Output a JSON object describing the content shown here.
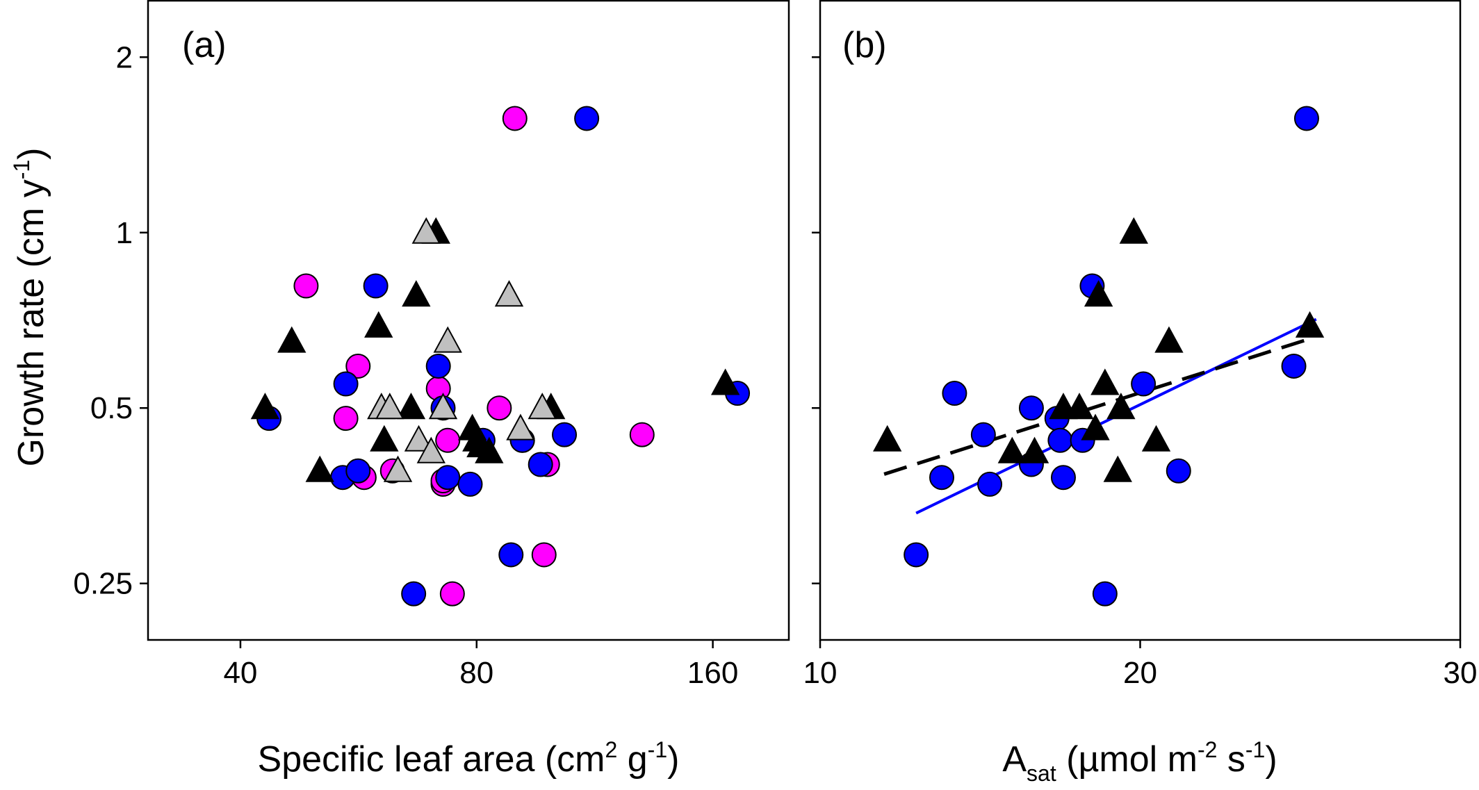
{
  "figure": {
    "ylabel": {
      "main": "Growth rate (cm y",
      "sup": "-1",
      "end": ")"
    }
  },
  "chart_data": [
    {
      "type": "scatter",
      "panel_label": "(a)",
      "xlabel": {
        "main": "Specific leaf area (cm",
        "sup1": "2",
        "mid": " g",
        "sup2": "-1",
        "end": ")"
      },
      "x_scale": "log",
      "y_scale": "log",
      "xlim": [
        30.5,
        200
      ],
      "ylim": [
        0.2,
        2.5
      ],
      "x_ticks": [
        40,
        80,
        160
      ],
      "y_ticks": [
        0.25,
        0.5,
        1,
        2
      ],
      "series": [
        {
          "marker": "circle",
          "color": "#ff00ff",
          "points": [
            [
              48.5,
              0.81
            ],
            [
              56.5,
              0.59
            ],
            [
              54.5,
              0.48
            ],
            [
              71.5,
              0.54
            ],
            [
              73.5,
              0.44
            ],
            [
              72.5,
              0.37
            ],
            [
              89.5,
              1.57
            ],
            [
              85.5,
              0.5
            ],
            [
              91.5,
              0.44
            ],
            [
              98.5,
              0.4
            ],
            [
              57.5,
              0.38
            ],
            [
              62.5,
              0.39
            ],
            [
              72.5,
              0.375
            ],
            [
              74.5,
              0.24
            ],
            [
              97.5,
              0.28
            ],
            [
              130,
              0.45
            ]
          ]
        },
        {
          "marker": "circle",
          "color": "#0000ff",
          "points": [
            [
              43.5,
              0.48
            ],
            [
              54.5,
              0.55
            ],
            [
              54,
              0.38
            ],
            [
              59.5,
              0.81
            ],
            [
              56.5,
              0.39
            ],
            [
              66.5,
              0.24
            ],
            [
              71.5,
              0.59
            ],
            [
              72.5,
              0.5
            ],
            [
              73.5,
              0.38
            ],
            [
              78.5,
              0.37
            ],
            [
              81.5,
              0.44
            ],
            [
              88.5,
              0.28
            ],
            [
              91.5,
              0.44
            ],
            [
              96.5,
              0.4
            ],
            [
              103.5,
              0.45
            ],
            [
              110.5,
              1.57
            ],
            [
              172,
              0.53
            ]
          ]
        },
        {
          "marker": "triangle",
          "color": "#000000",
          "points": [
            [
              43,
              0.5
            ],
            [
              46.5,
              0.65
            ],
            [
              50.5,
              0.39
            ],
            [
              60,
              0.69
            ],
            [
              61,
              0.44
            ],
            [
              66,
              0.5
            ],
            [
              67,
              0.78
            ],
            [
              71,
              1.0
            ],
            [
              79,
              0.46
            ],
            [
              80,
              0.44
            ],
            [
              81,
              0.43
            ],
            [
              83,
              0.42
            ],
            [
              99.5,
              0.5
            ],
            [
              166,
              0.55
            ]
          ]
        },
        {
          "marker": "triangle",
          "color": "#c0c0c0",
          "points": [
            [
              60.5,
              0.5
            ],
            [
              62,
              0.5
            ],
            [
              63.5,
              0.39
            ],
            [
              67.5,
              0.44
            ],
            [
              69,
              1.0
            ],
            [
              70,
              0.42
            ],
            [
              72.5,
              0.5
            ],
            [
              73.5,
              0.65
            ],
            [
              88,
              0.78
            ],
            [
              91,
              0.46
            ],
            [
              97,
              0.5
            ]
          ]
        }
      ]
    },
    {
      "type": "scatter",
      "panel_label": "(b)",
      "xlabel": {
        "main": "A",
        "sub": "sat",
        "mid": " (µmol m",
        "sup1": "-2",
        "mid2": " s",
        "sup2": "-1",
        "end": ")"
      },
      "x_scale": "linear",
      "y_scale": "log",
      "xlim": [
        10,
        30
      ],
      "ylim": [
        0.2,
        2.5
      ],
      "x_ticks": [
        10,
        20,
        30
      ],
      "y_ticks": [
        0.25,
        0.5,
        1,
        2
      ],
      "series": [
        {
          "marker": "circle",
          "color": "#0000ff",
          "points": [
            [
              13.0,
              0.28
            ],
            [
              13.8,
              0.38
            ],
            [
              14.2,
              0.53
            ],
            [
              15.1,
              0.45
            ],
            [
              15.3,
              0.37
            ],
            [
              16.6,
              0.5
            ],
            [
              16.6,
              0.4
            ],
            [
              17.4,
              0.48
            ],
            [
              17.5,
              0.44
            ],
            [
              17.6,
              0.38
            ],
            [
              18.2,
              0.44
            ],
            [
              18.5,
              0.81
            ],
            [
              18.9,
              0.24
            ],
            [
              20.1,
              0.55
            ],
            [
              21.2,
              0.39
            ],
            [
              24.8,
              0.59
            ],
            [
              25.2,
              1.57
            ]
          ]
        },
        {
          "marker": "triangle",
          "color": "#000000",
          "points": [
            [
              12.1,
              0.44
            ],
            [
              16.0,
              0.42
            ],
            [
              16.7,
              0.42
            ],
            [
              17.6,
              0.5
            ],
            [
              18.1,
              0.5
            ],
            [
              18.6,
              0.46
            ],
            [
              18.7,
              0.78
            ],
            [
              18.9,
              0.55
            ],
            [
              19.3,
              0.39
            ],
            [
              19.4,
              0.5
            ],
            [
              19.8,
              1.0
            ],
            [
              20.5,
              0.44
            ],
            [
              20.9,
              0.65
            ],
            [
              25.3,
              0.69
            ]
          ]
        }
      ],
      "fit_lines": [
        {
          "color": "#0000ff",
          "style": "solid",
          "x": [
            13.0,
            25.5
          ],
          "y": [
            0.33,
            0.71
          ]
        },
        {
          "color": "#000000",
          "style": "dashed",
          "x": [
            12.0,
            25.4
          ],
          "y": [
            0.385,
            0.66
          ]
        }
      ]
    }
  ]
}
